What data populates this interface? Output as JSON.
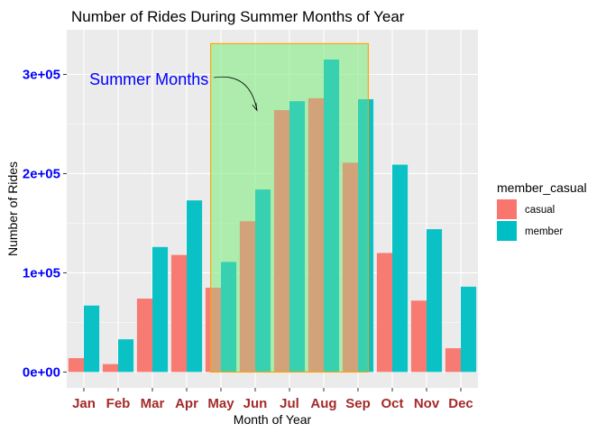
{
  "colors": {
    "casual": "#F8766D",
    "member": "#00BFC4",
    "panel_bg": "#EBEBEB",
    "grid": "#FFFFFF",
    "highlight_fill": "#90EE90",
    "highlight_stroke": "#FFA500",
    "annotation": "#0000FF",
    "ytick": "#0000FF",
    "xtick": "#A52A2A"
  },
  "chart_data": {
    "type": "bar",
    "title": "Number of Rides During Summer Months of Year",
    "xlabel": "Month of Year",
    "ylabel": "Number of Rides",
    "ylim": [
      0,
      345000
    ],
    "yticks": [
      0,
      100000,
      200000,
      300000
    ],
    "ytick_labels": [
      "0e+00",
      "1e+05",
      "2e+05",
      "3e+05"
    ],
    "grid": true,
    "legend_title": "member_casual",
    "legend_position": "right",
    "categories": [
      "Jan",
      "Feb",
      "Mar",
      "Apr",
      "May",
      "Jun",
      "Jul",
      "Aug",
      "Sep",
      "Oct",
      "Nov",
      "Dec"
    ],
    "series": [
      {
        "name": "casual",
        "values": [
          14000,
          8000,
          74000,
          118000,
          85000,
          152000,
          264000,
          276000,
          211000,
          120000,
          72000,
          24000
        ]
      },
      {
        "name": "member",
        "values": [
          67000,
          33000,
          126000,
          173000,
          111000,
          184000,
          273000,
          315000,
          275000,
          209000,
          144000,
          86000
        ]
      }
    ],
    "highlight": {
      "from": "May",
      "to": "Sep",
      "ymax": 331000
    },
    "annotation": {
      "text": "Summer Months",
      "x_category": "Mar",
      "y": 295000,
      "arrow_to_category": "Jun",
      "arrow_to_y": 262000
    }
  }
}
